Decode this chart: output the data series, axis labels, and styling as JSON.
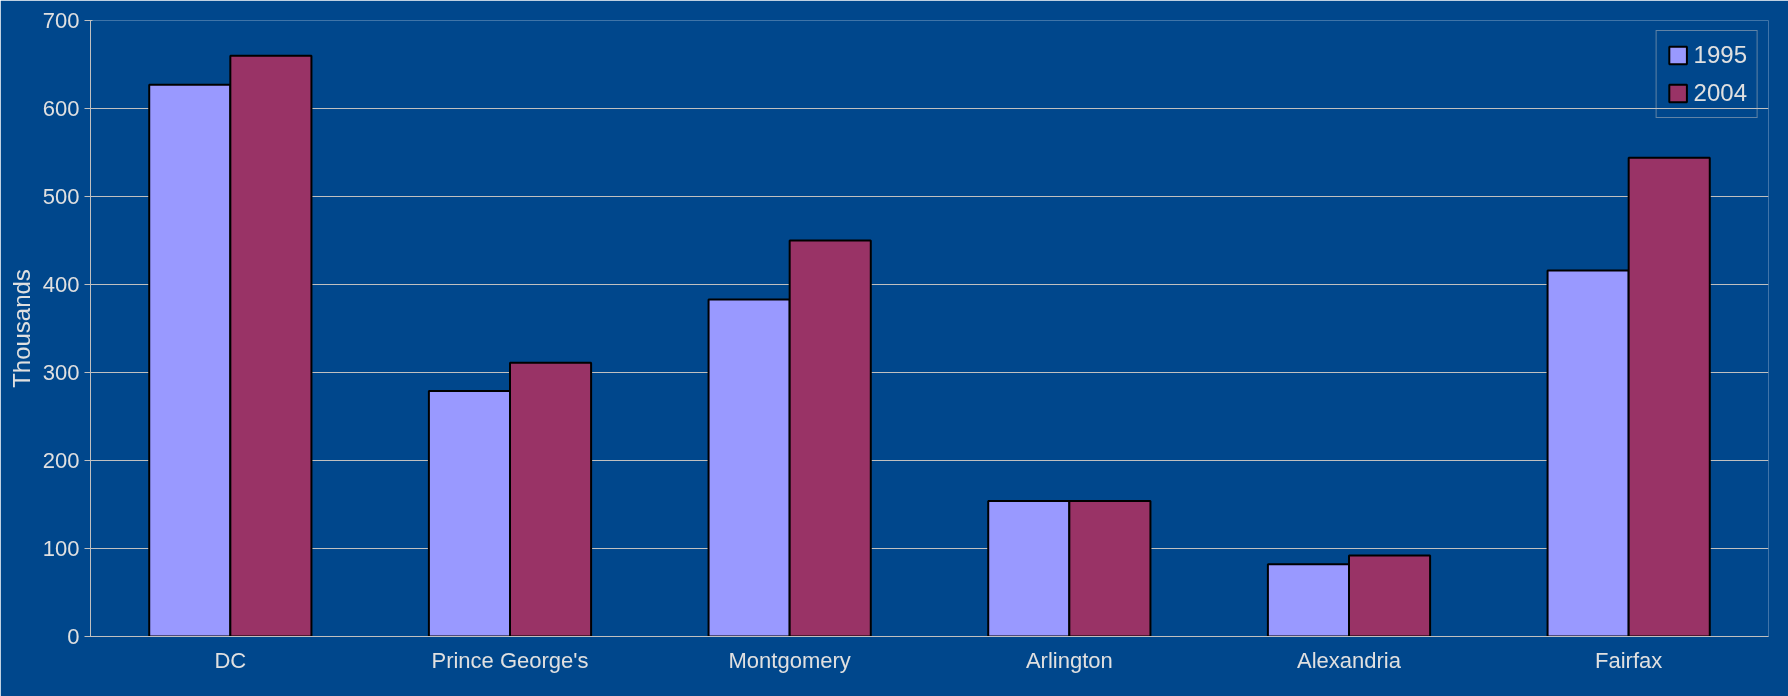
{
  "chart_data": {
    "type": "bar",
    "ylabel": "Thousands",
    "categories": [
      "DC",
      "Prince George's",
      "Montgomery",
      "Arlington",
      "Alexandria",
      "Fairfax"
    ],
    "series": [
      {
        "name": "1995",
        "color": "#9999ff",
        "values": [
          627,
          279,
          383,
          154,
          82,
          416
        ]
      },
      {
        "name": "2004",
        "color": "#993366",
        "values": [
          660,
          311,
          450,
          154,
          92,
          544
        ]
      }
    ],
    "ylim": [
      0,
      700
    ],
    "yticks": [
      0,
      100,
      200,
      300,
      400,
      500,
      600,
      700
    ],
    "grid": "y",
    "legend": "top right"
  }
}
